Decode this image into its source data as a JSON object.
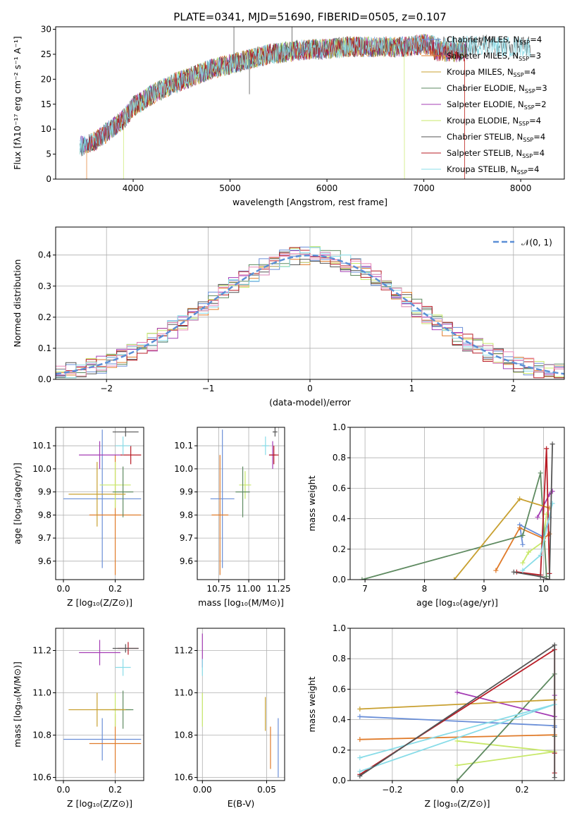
{
  "figure": {
    "suptitle": "PLATE=0341, MJD=51690, FIBERID=0505, z=0.107"
  },
  "series": [
    {
      "name": "Chabrier MILES",
      "n_ssp": "4",
      "color": "#6a8fd8"
    },
    {
      "name": "Salpeter MILES",
      "n_ssp": "3",
      "color": "#e07b2a"
    },
    {
      "name": "Kroupa MILES",
      "n_ssp": "4",
      "color": "#c8a030"
    },
    {
      "name": "Chabrier ELODIE",
      "n_ssp": "3",
      "color": "#5e8a60"
    },
    {
      "name": "Salpeter ELODIE",
      "n_ssp": "2",
      "color": "#a43cb4"
    },
    {
      "name": "Kroupa ELODIE",
      "n_ssp": "4",
      "color": "#c8e86a"
    },
    {
      "name": "Chabrier STELIB",
      "n_ssp": "4",
      "color": "#555555"
    },
    {
      "name": "Salpeter STELIB",
      "n_ssp": "4",
      "color": "#b81c26"
    },
    {
      "name": "Kroupa STELIB",
      "n_ssp": "4",
      "color": "#88dce8"
    }
  ],
  "chart_data": [
    {
      "id": "spectrum",
      "type": "line",
      "xlabel": "wavelength [Angstrom, rest frame]",
      "ylabel": "Flux [fλ10⁻¹⁷ erg cm⁻² s⁻¹ A⁻¹]",
      "xlim": [
        3200,
        8450
      ],
      "ylim": [
        0,
        30.5
      ],
      "xticks": [
        "4000",
        "5000",
        "6000",
        "7000",
        "8000"
      ],
      "yticks": [
        "0",
        "5",
        "10",
        "15",
        "20",
        "25",
        "30"
      ],
      "legend_position": "top-right",
      "continuum": {
        "x": [
          3450,
          3600,
          3700,
          3800,
          3900,
          4000,
          4200,
          4400,
          4600,
          4800,
          5000,
          5200,
          5400,
          5600,
          5800,
          6000,
          6200,
          6400,
          6600,
          6800,
          7000,
          7200,
          7400,
          7600,
          7800,
          8000
        ],
        "y": [
          6.5,
          7.5,
          9,
          10.5,
          12,
          14.5,
          17,
          19,
          20.5,
          22,
          23,
          24,
          25,
          25.5,
          26,
          26,
          26.5,
          26.5,
          26.5,
          26.5,
          27,
          26.5,
          26.5,
          27,
          26.5,
          26.5
        ]
      },
      "features": [
        {
          "x": 5040,
          "y": 31
        },
        {
          "x": 5200,
          "y": 17
        },
        {
          "x": 5640,
          "y": 31
        }
      ]
    },
    {
      "id": "residuals",
      "type": "histogram",
      "xlabel": "(data-model)/error",
      "ylabel": "Normed distribution",
      "xlim": [
        -2.5,
        2.5
      ],
      "ylim": [
        0,
        0.49
      ],
      "xticks": [
        "−2",
        "−1",
        "0",
        "1",
        "2"
      ],
      "yticks": [
        "0.0",
        "0.1",
        "0.2",
        "0.3",
        "0.4"
      ],
      "bin_width": 0.1,
      "normal_label": "𝒩(0, 1)",
      "legend_position": "top-right"
    },
    {
      "id": "age_vs_z",
      "type": "scatter",
      "xlabel": "Z [log₁₀(Z/Z⊙)]",
      "ylabel": "age  [log₁₀(age/yr)]",
      "xlim": [
        -0.03,
        0.31
      ],
      "ylim": [
        9.52,
        10.18
      ],
      "xticks": [
        0.0,
        0.2
      ],
      "xticklabels": [
        "0.0",
        "0.2"
      ],
      "yticks": [
        9.6,
        9.7,
        9.8,
        9.9,
        10.0,
        10.1
      ],
      "yticklabels": [
        "9.6",
        "9.7",
        "9.8",
        "9.9",
        "10.0",
        "10.1"
      ],
      "points": [
        {
          "x": 0.15,
          "y": 9.87,
          "xerr": 0.15,
          "yerr": 0.3,
          "series": 0
        },
        {
          "x": 0.2,
          "y": 9.8,
          "xerr": 0.1,
          "yerr": 0.26,
          "series": 1
        },
        {
          "x": 0.2,
          "y": 9.93,
          "xerr": 0.06,
          "yerr": 0.1,
          "series": 5
        },
        {
          "x": 0.23,
          "y": 9.9,
          "xerr": 0.04,
          "yerr": 0.11,
          "series": 3
        },
        {
          "x": 0.14,
          "y": 10.06,
          "xerr": 0.08,
          "yerr": 0.06,
          "series": 4
        },
        {
          "x": 0.13,
          "y": 9.89,
          "xerr": 0.11,
          "yerr": 0.14,
          "series": 2
        },
        {
          "x": 0.26,
          "y": 10.06,
          "xerr": 0.04,
          "yerr": 0.04,
          "series": 7
        },
        {
          "x": 0.23,
          "y": 10.1,
          "xerr": 0.03,
          "yerr": 0.04,
          "series": 8
        },
        {
          "x": 0.24,
          "y": 10.16,
          "xerr": 0.05,
          "yerr": 0.02,
          "series": 6
        }
      ]
    },
    {
      "id": "age_vs_mass",
      "type": "scatter",
      "xlabel": "mass [log₁₀(M/M⊙)]",
      "ylabel": "",
      "xlim": [
        10.57,
        11.3
      ],
      "ylim": [
        9.52,
        10.18
      ],
      "xticks": [
        10.75,
        11.0,
        11.25
      ],
      "xticklabels": [
        "10.75",
        "11.00",
        "11.25"
      ],
      "yticks": [
        9.6,
        9.7,
        9.8,
        9.9,
        10.0,
        10.1
      ],
      "yticklabels": [
        "9.6",
        "9.7",
        "9.8",
        "9.9",
        "10.0",
        "10.1"
      ],
      "points": [
        {
          "x": 10.78,
          "y": 9.87,
          "xerr": 0.1,
          "yerr": 0.3,
          "series": 0
        },
        {
          "x": 10.76,
          "y": 9.8,
          "xerr": 0.07,
          "yerr": 0.26,
          "series": 1
        },
        {
          "x": 10.97,
          "y": 9.93,
          "xerr": 0.05,
          "yerr": 0.06,
          "series": 5
        },
        {
          "x": 10.95,
          "y": 9.9,
          "xerr": 0.06,
          "yerr": 0.11,
          "series": 3
        },
        {
          "x": 11.2,
          "y": 10.06,
          "xerr": 0.03,
          "yerr": 0.06,
          "series": 4
        },
        {
          "x": 11.21,
          "y": 10.06,
          "xerr": 0.04,
          "yerr": 0.04,
          "series": 7
        },
        {
          "x": 11.14,
          "y": 10.1,
          "xerr": 0.03,
          "yerr": 0.04,
          "series": 8
        },
        {
          "x": 11.22,
          "y": 10.16,
          "xerr": 0.02,
          "yerr": 0.02,
          "series": 6
        }
      ]
    },
    {
      "id": "weight_vs_age",
      "type": "line",
      "xlabel": "age  [log₁₀(age/yr)]",
      "ylabel": "mass weight",
      "xlim": [
        6.75,
        10.35
      ],
      "ylim": [
        0,
        1.0
      ],
      "xticks": [
        7,
        8,
        9,
        10
      ],
      "xticklabels": [
        "7",
        "8",
        "9",
        "10"
      ],
      "yticks": [
        0,
        0.2,
        0.4,
        0.6,
        0.8,
        1.0
      ],
      "yticklabels": [
        "0.0",
        "0.2",
        "0.4",
        "0.6",
        "0.8",
        "1.0"
      ],
      "lines": [
        {
          "series": 0,
          "x": [
            9.65,
            9.6,
            10.0,
            10.1
          ],
          "y": [
            0.23,
            0.36,
            0.28,
            0.41
          ]
        },
        {
          "series": 1,
          "x": [
            9.2,
            9.6,
            10.0,
            10.1
          ],
          "y": [
            0.06,
            0.34,
            0.27,
            0.3
          ]
        },
        {
          "series": 5,
          "x": [
            9.65,
            9.75,
            10.0,
            10.05
          ],
          "y": [
            0.11,
            0.18,
            0.25,
            0.43
          ]
        },
        {
          "series": 3,
          "x": [
            6.95,
            9.65,
            9.95,
            10.05
          ],
          "y": [
            0.0,
            0.29,
            0.7,
            0.02
          ]
        },
        {
          "series": 4,
          "x": [
            9.9,
            10.1,
            10.15
          ],
          "y": [
            0.41,
            0.56,
            0.58
          ]
        },
        {
          "series": 2,
          "x": [
            8.5,
            9.6,
            10.1
          ],
          "y": [
            0.0,
            0.53,
            0.47
          ]
        },
        {
          "series": 7,
          "x": [
            9.55,
            9.95,
            10.05,
            10.1
          ],
          "y": [
            0.05,
            0.03,
            0.86,
            0.04
          ]
        },
        {
          "series": 8,
          "x": [
            9.65,
            9.95,
            10.15
          ],
          "y": [
            0.06,
            0.16,
            0.5
          ]
        },
        {
          "series": 6,
          "x": [
            9.5,
            9.95,
            10.1,
            10.15
          ],
          "y": [
            0.05,
            0.02,
            0.0,
            0.89
          ]
        }
      ]
    },
    {
      "id": "mass_vs_z",
      "type": "scatter",
      "xlabel": "Z [log₁₀(Z/Z⊙)]",
      "ylabel": "mass [log₁₀(M/M⊙)]",
      "xlim": [
        -0.03,
        0.31
      ],
      "ylim": [
        10.585,
        11.305
      ],
      "xticks": [
        0.0,
        0.2
      ],
      "xticklabels": [
        "0.0",
        "0.2"
      ],
      "yticks": [
        10.6,
        10.8,
        11.0,
        11.2
      ],
      "yticklabels": [
        "10.6",
        "10.8",
        "11.0",
        "11.2"
      ],
      "points": [
        {
          "x": 0.15,
          "y": 10.78,
          "xerr": 0.15,
          "yerr": 0.1,
          "series": 0
        },
        {
          "x": 0.2,
          "y": 10.76,
          "xerr": 0.1,
          "yerr": 0.14,
          "series": 1
        },
        {
          "x": 0.2,
          "y": 10.92,
          "xerr": 0.06,
          "yerr": 0.08,
          "series": 5
        },
        {
          "x": 0.23,
          "y": 10.92,
          "xerr": 0.04,
          "yerr": 0.09,
          "series": 3
        },
        {
          "x": 0.13,
          "y": 10.92,
          "xerr": 0.11,
          "yerr": 0.08,
          "series": 2
        },
        {
          "x": 0.14,
          "y": 11.19,
          "xerr": 0.08,
          "yerr": 0.06,
          "series": 4
        },
        {
          "x": 0.25,
          "y": 11.21,
          "xerr": 0.04,
          "yerr": 0.03,
          "series": 7
        },
        {
          "x": 0.23,
          "y": 11.12,
          "xerr": 0.03,
          "yerr": 0.04,
          "series": 8
        },
        {
          "x": 0.24,
          "y": 11.21,
          "xerr": 0.05,
          "yerr": 0.02,
          "series": 6
        }
      ]
    },
    {
      "id": "mass_vs_ebv",
      "type": "scatter",
      "xlabel": "E(B-V)",
      "ylabel": "",
      "xlim": [
        -0.004,
        0.064
      ],
      "ylim": [
        10.585,
        11.305
      ],
      "xticks": [
        0.0,
        0.05
      ],
      "xticklabels": [
        "0.00",
        "0.05"
      ],
      "yticks": [
        10.6,
        10.8,
        11.0,
        11.2
      ],
      "yticklabels": [
        "10.6",
        "10.8",
        "11.0",
        "11.2"
      ],
      "points": [
        {
          "x": 0.0,
          "y": 11.2,
          "xerr": 0,
          "yerr": 0.08,
          "series": 4
        },
        {
          "x": 0.0,
          "y": 11.12,
          "xerr": 0,
          "yerr": 0.04,
          "series": 8
        },
        {
          "x": 0.0,
          "y": 10.92,
          "xerr": 0,
          "yerr": 0.08,
          "series": 5
        },
        {
          "x": 0.049,
          "y": 10.9,
          "xerr": 0,
          "yerr": 0.08,
          "series": 2
        },
        {
          "x": 0.053,
          "y": 10.74,
          "xerr": 0,
          "yerr": 0.1,
          "series": 1
        },
        {
          "x": 0.059,
          "y": 10.74,
          "xerr": 0,
          "yerr": 0.14,
          "series": 0
        }
      ]
    },
    {
      "id": "weight_vs_z",
      "type": "line",
      "xlabel": "Z [log₁₀(Z/Z⊙)]",
      "ylabel": "mass weight",
      "xlim": [
        -0.33,
        0.33
      ],
      "ylim": [
        0,
        1.0
      ],
      "xticks": [
        -0.2,
        0.0,
        0.2
      ],
      "xticklabels": [
        "−0.2",
        "0.0",
        "0.2"
      ],
      "yticks": [
        0,
        0.2,
        0.4,
        0.6,
        0.8,
        1.0
      ],
      "yticklabels": [
        "0.0",
        "0.2",
        "0.4",
        "0.6",
        "0.8",
        "1.0"
      ],
      "lines": [
        {
          "series": 0,
          "x": [
            -0.3,
            0.3,
            0.3
          ],
          "y": [
            0.42,
            0.36,
            0.35
          ]
        },
        {
          "series": 1,
          "x": [
            -0.3,
            0.3,
            0.3
          ],
          "y": [
            0.27,
            0.3,
            0.3
          ]
        },
        {
          "series": 5,
          "x": [
            0.0,
            0.3,
            0.0
          ],
          "y": [
            0.26,
            0.19,
            0.1
          ]
        },
        {
          "series": 3,
          "x": [
            0.0,
            0.3,
            0.3
          ],
          "y": [
            0.0,
            0.7,
            0.29
          ]
        },
        {
          "series": 4,
          "x": [
            0.0,
            0.3,
            0.3
          ],
          "y": [
            0.58,
            0.42,
            0.56
          ]
        },
        {
          "series": 2,
          "x": [
            -0.3,
            0.3
          ],
          "y": [
            0.47,
            0.53
          ]
        },
        {
          "series": 7,
          "x": [
            -0.3,
            0.3,
            0.3,
            0.3
          ],
          "y": [
            0.04,
            0.86,
            0.05,
            0.18
          ]
        },
        {
          "series": 8,
          "x": [
            -0.3,
            0.3,
            -0.3
          ],
          "y": [
            0.06,
            0.5,
            0.15
          ]
        },
        {
          "series": 6,
          "x": [
            -0.3,
            0.3,
            0.3
          ],
          "y": [
            0.03,
            0.89,
            0.02
          ]
        }
      ]
    }
  ]
}
